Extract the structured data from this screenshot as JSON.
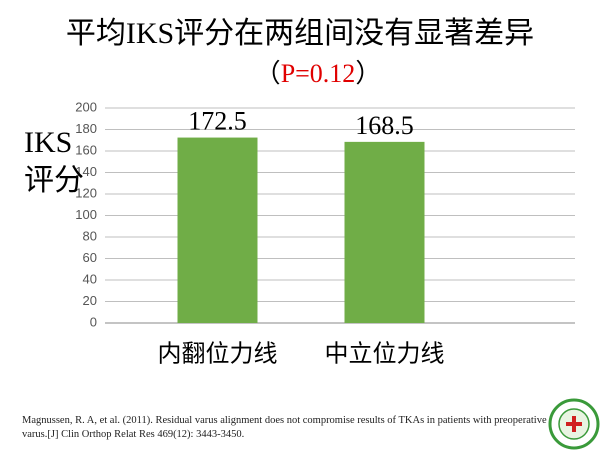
{
  "chart_data": {
    "type": "bar",
    "title": "平均IKS评分在两组间没有显著差异",
    "subtitle": {
      "prefix": "（",
      "text": "P=0.12",
      "suffix": "）"
    },
    "y_label": "IKS评分",
    "categories": [
      "内翻位力线",
      "中立位力线"
    ],
    "values": [
      172.5,
      168.5
    ],
    "color": "#70ad47",
    "ylim": [
      0,
      200
    ],
    "yticks": [
      0,
      20,
      40,
      60,
      80,
      100,
      120,
      140,
      160,
      180,
      200
    ],
    "grid": true,
    "citation": "Magnussen, R. A, et al. (2011). Residual varus alignment does not compromise results of TKAs in patients with preoperative varus.[J] Clin Orthop Relat Res 469(12): 3443-3450."
  }
}
